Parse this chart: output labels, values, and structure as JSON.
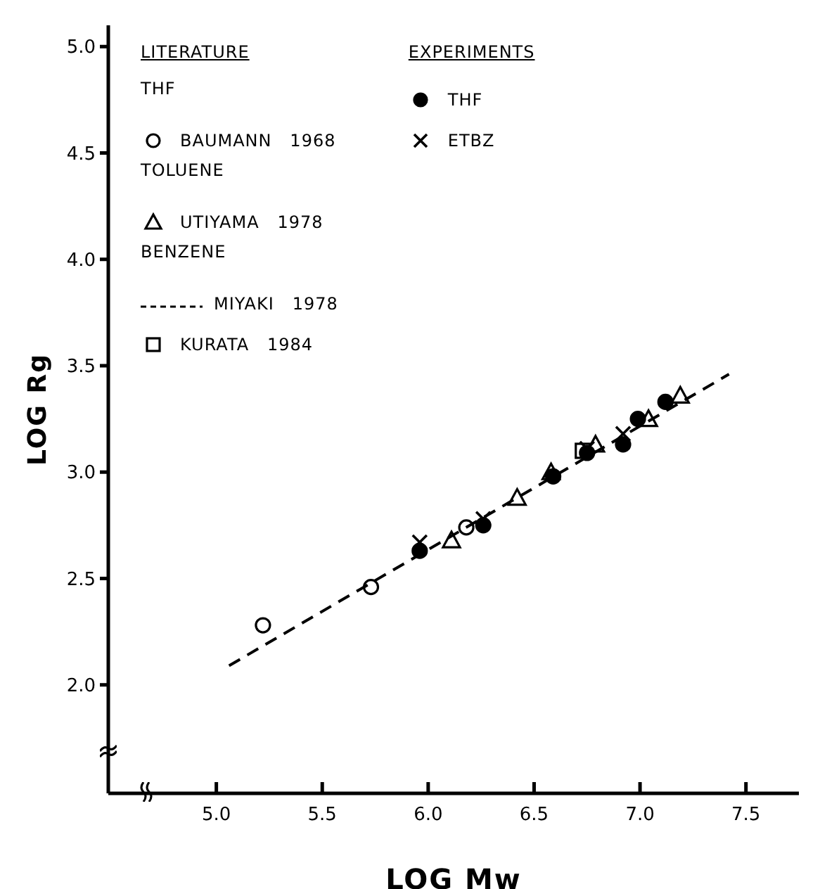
{
  "chart_data": {
    "type": "scatter",
    "xlabel": "LOG Mw",
    "ylabel": "LOG Rg",
    "xlim": [
      4.49,
      7.75
    ],
    "ylim": [
      1.49,
      5.1
    ],
    "xticks": [
      {
        "value": 5,
        "label": "5.0"
      },
      {
        "value": 5.5,
        "label": "5.5"
      },
      {
        "value": 6,
        "label": "6.0"
      },
      {
        "value": 6.5,
        "label": "6.5"
      },
      {
        "value": 7,
        "label": "7.0"
      },
      {
        "value": 7.5,
        "label": "7.5"
      }
    ],
    "yticks": [
      {
        "value": 2,
        "label": "2.0"
      },
      {
        "value": 2.5,
        "label": "2.5"
      },
      {
        "value": 3,
        "label": "3.0"
      },
      {
        "value": 3.5,
        "label": "3.5"
      },
      {
        "value": 4,
        "label": "4.0"
      },
      {
        "value": 4.5,
        "label": "4.5"
      },
      {
        "value": 5,
        "label": "5.0"
      }
    ],
    "annotations": [
      "LITERATURE",
      "EXPERIMENTS",
      "THF",
      "TOLUENE",
      "BENZENE"
    ],
    "legend": "top left",
    "series": [
      {
        "name": "BAUMANN   1968",
        "marker": "circle",
        "color": "#000000",
        "x": [
          5.22,
          5.73,
          6.18
        ],
        "values": [
          2.28,
          2.46,
          2.74
        ]
      },
      {
        "name": "UTIYAMA   1978",
        "marker": "triangle",
        "color": "#000000",
        "x": [
          6.11,
          6.42,
          6.58,
          6.79,
          7.04,
          7.19
        ],
        "values": [
          2.68,
          2.88,
          3.0,
          3.13,
          3.25,
          3.36
        ]
      },
      {
        "name": "MIYAKI   1978",
        "type": "line",
        "line_style": "dashed",
        "color": "#000000",
        "x": [
          5.06,
          7.42
        ],
        "values": [
          2.09,
          3.46
        ]
      },
      {
        "name": "KURATA   1984",
        "marker": "square",
        "color": "#000000",
        "x": [
          6.73
        ],
        "values": [
          3.1
        ]
      },
      {
        "name": "THF",
        "marker": "circle",
        "color": "#000000",
        "x": [
          5.96,
          6.26,
          6.59,
          6.75,
          6.92,
          6.99,
          7.12
        ],
        "values": [
          2.63,
          2.75,
          2.98,
          3.09,
          3.13,
          3.25,
          3.33
        ]
      },
      {
        "name": "ETBZ",
        "marker": "cross",
        "color": "#000000",
        "x": [
          5.96,
          6.26,
          6.75,
          6.92
        ],
        "values": [
          2.67,
          2.78,
          3.11,
          3.18
        ]
      }
    ]
  }
}
